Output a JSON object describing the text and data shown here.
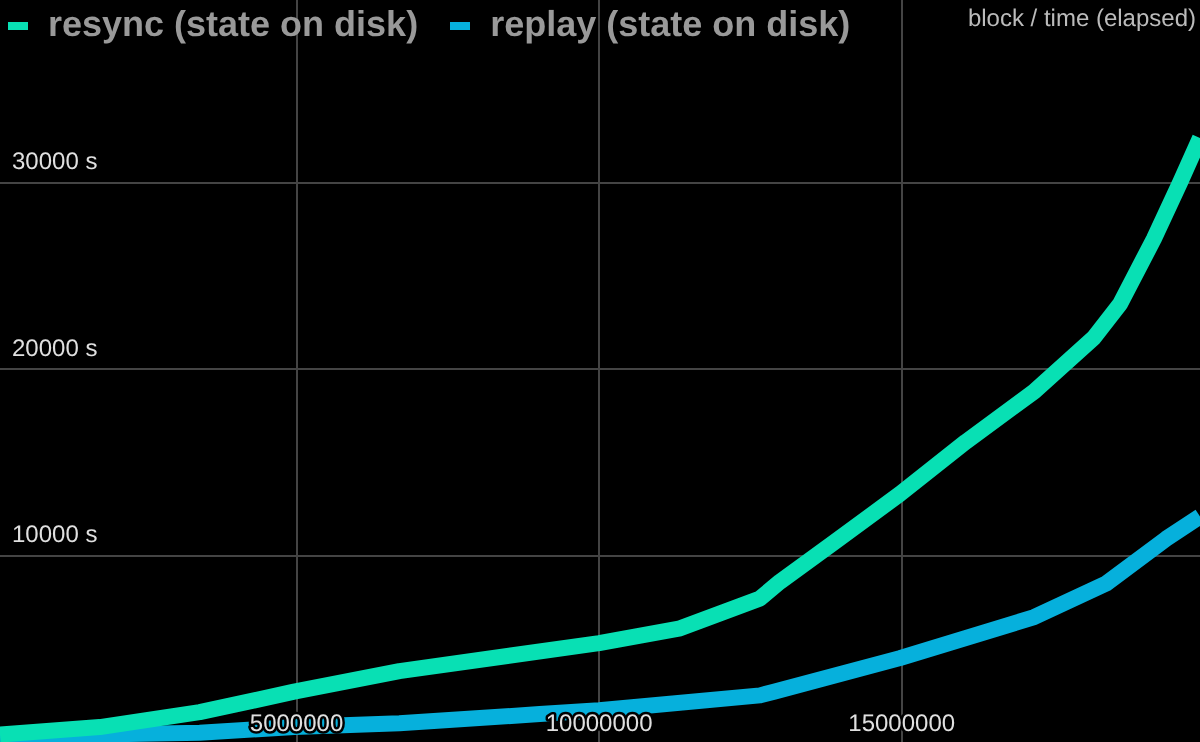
{
  "chart_data": {
    "type": "line",
    "annotations": [
      "block / time (elapsed)"
    ],
    "xlim": [
      100000,
      19930000
    ],
    "xticks": [
      5000000,
      10000000,
      15000000
    ],
    "ylim": [
      0,
      39800
    ],
    "yticks": [
      {
        "value": 10000,
        "label": "10000 s"
      },
      {
        "value": 20000,
        "label": "20000 s"
      },
      {
        "value": 30000,
        "label": "30000 s"
      }
    ],
    "grid": true,
    "legend": "top left",
    "marker": "none",
    "line_style": "solid",
    "series": [
      {
        "name": "resync (state on disk)",
        "color": "#08e0b4",
        "x": [
          100000,
          1750000,
          3400000,
          4400000,
          4960000,
          6700000,
          10000000,
          11340000,
          12660000,
          12990000,
          13880000,
          14970000,
          16060000,
          17190000,
          18180000,
          18610000,
          19170000,
          19600000,
          19930000
        ],
        "values": [
          400,
          800,
          1600,
          2300,
          2700,
          3800,
          5300,
          6100,
          7700,
          8600,
          10700,
          13300,
          16100,
          18800,
          21700,
          23500,
          27000,
          30000,
          32400
        ]
      },
      {
        "name": "replay (state on disk)",
        "color": "#06b0dc",
        "x": [
          100000,
          3400000,
          4960000,
          6700000,
          9020000,
          10000000,
          12660000,
          12890000,
          14970000,
          17190000,
          18380000,
          19370000,
          19930000
        ],
        "values": [
          300,
          500,
          800,
          1000,
          1500,
          1700,
          2500,
          2700,
          4500,
          6700,
          8500,
          10900,
          12100
        ]
      }
    ]
  }
}
